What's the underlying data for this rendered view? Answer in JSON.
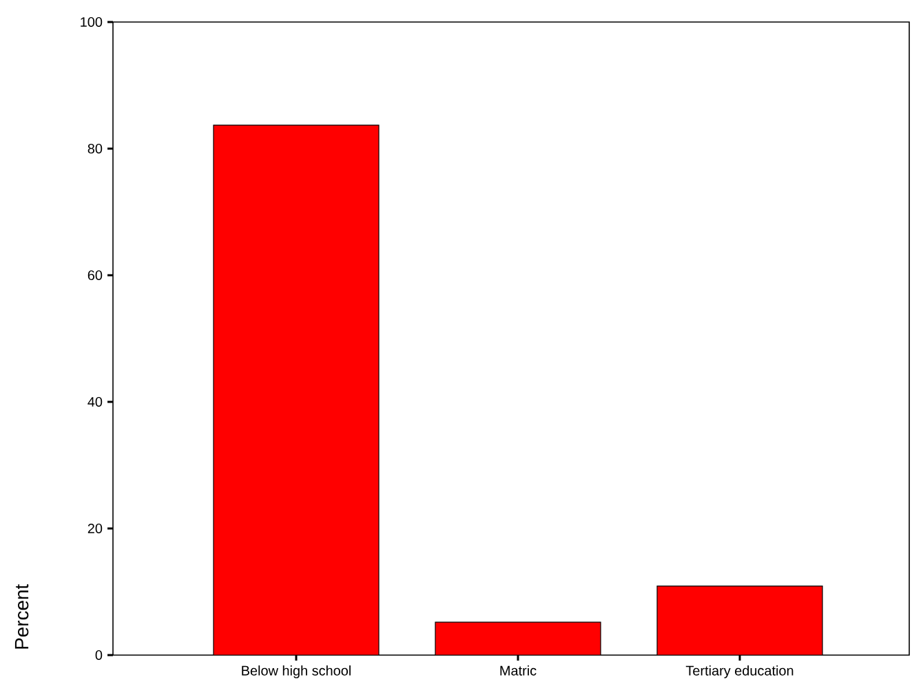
{
  "chart_data": {
    "type": "bar",
    "ylabel": "Percent",
    "categories": [
      "Below high school",
      "Matric",
      "Tertiary education"
    ],
    "values": [
      83.7,
      5.2,
      10.9
    ],
    "color": "#ff0000",
    "ylim": [
      0,
      100
    ],
    "yticks": [
      0,
      20,
      40,
      60,
      80,
      100
    ],
    "grid": false
  }
}
